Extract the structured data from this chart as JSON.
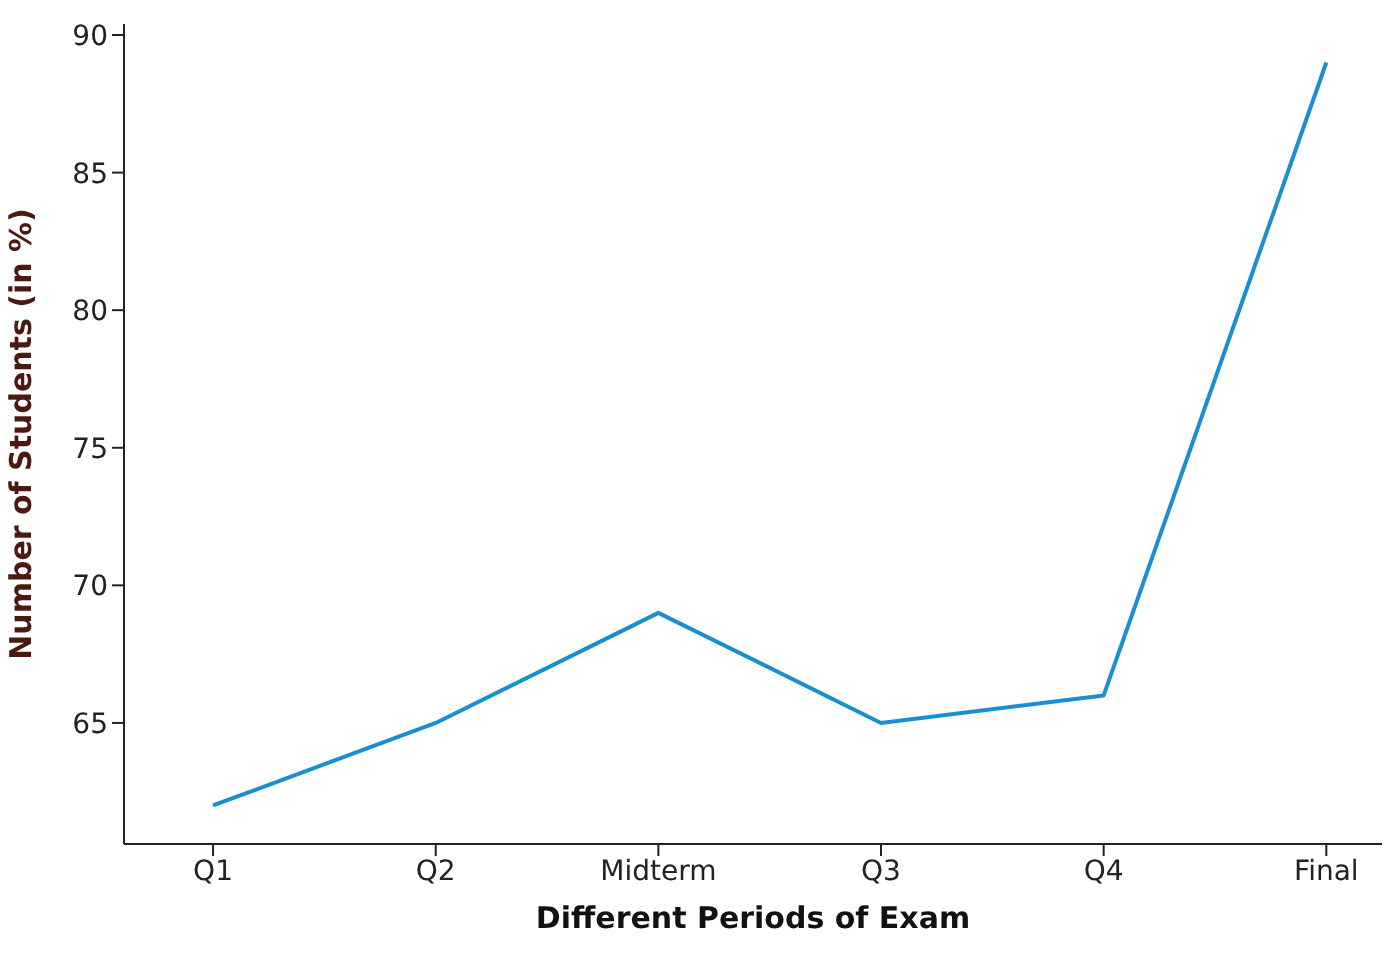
{
  "chart_data": {
    "type": "line",
    "xlabel": "Different Periods of Exam",
    "ylabel": "Number of Students (in %)",
    "categories": [
      "Q1",
      "Q2",
      "Midterm",
      "Q3",
      "Q4",
      "Final"
    ],
    "series": [
      {
        "color": "#1a8fd0",
        "values": [
          62,
          65,
          69,
          65,
          66,
          89
        ]
      }
    ],
    "ylim": [
      60.6,
      90.4
    ],
    "yticks": [
      65,
      70,
      75,
      80,
      85,
      90
    ],
    "marker": "none",
    "line_style": "solid"
  }
}
